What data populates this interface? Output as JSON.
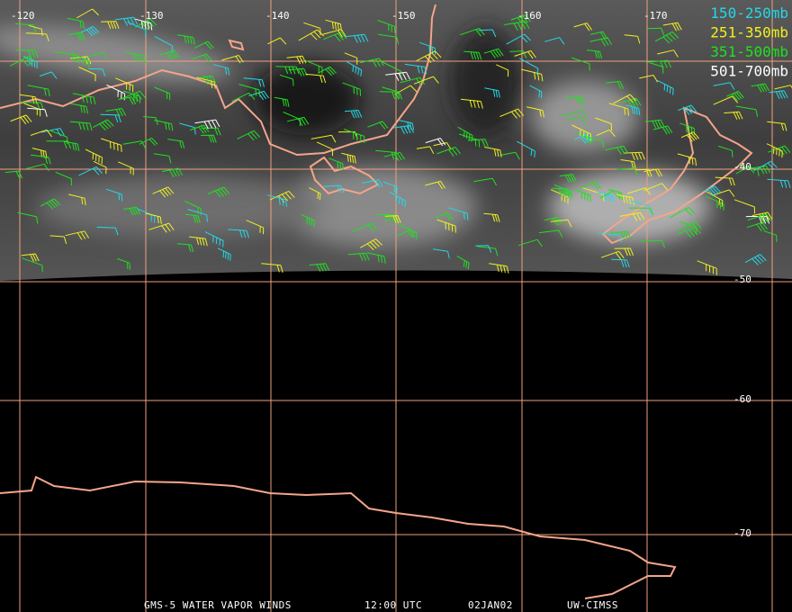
{
  "grid": {
    "longitude_labels": [
      "-120",
      "-130",
      "-140",
      "-150",
      "-160",
      "-170"
    ],
    "latitude_labels": [
      "-40",
      "-50",
      "-60",
      "-70"
    ]
  },
  "legend": [
    {
      "label": "150-250mb",
      "color": "#22d8e8"
    },
    {
      "label": "251-350mb",
      "color": "#f0f020"
    },
    {
      "label": "351-500mb",
      "color": "#20e020"
    },
    {
      "label": "501-700mb",
      "color": "#ffffff"
    }
  ],
  "footer": [
    "GMS-5 WATER VAPOR WINDS",
    "12:00 UTC",
    "02JAN02",
    "UW-CIMSS"
  ]
}
